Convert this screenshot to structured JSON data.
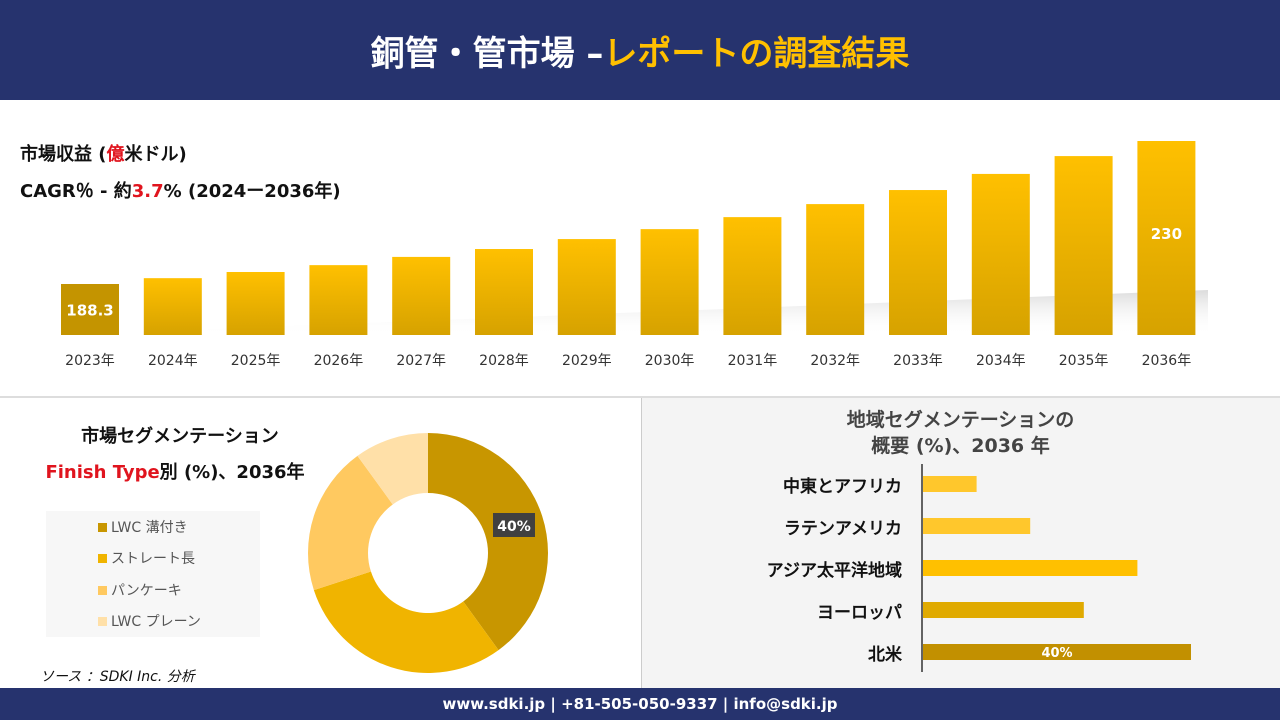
{
  "header": {
    "title_main": "銅管・管市場 –",
    "title_highlight": "レポートの調査結果"
  },
  "revenue": {
    "label_pre": "市場収益 (",
    "label_red": "億",
    "label_post": "米ドル)",
    "cagr_pre": "CAGR％ - 約",
    "cagr_red": "3.7",
    "cagr_post": "% (2024ー2036年)"
  },
  "chart_data": [
    {
      "type": "bar",
      "categories": [
        "2023年",
        "2024年",
        "2025年",
        "2026年",
        "2027年",
        "2028年",
        "2029年",
        "2030年",
        "2031年",
        "2032年",
        "2033年",
        "2034年",
        "2035年",
        "2036年"
      ],
      "values": [
        188.3,
        190.0,
        191.8,
        193.8,
        196.2,
        198.5,
        201.4,
        204.3,
        207.8,
        211.6,
        215.7,
        220.4,
        225.6,
        230
      ],
      "data_labels": {
        "0": "188.3",
        "13": "230"
      },
      "ylabel": "",
      "xlabel": ""
    },
    {
      "type": "pie",
      "title": "市場セグメンテーション",
      "subtitle_red": "Finish Type",
      "subtitle": "別 (%)、2036年",
      "labels": [
        "LWC 溝付き",
        "ストレート長",
        "パンケーキ",
        "LWC プレーン"
      ],
      "values": [
        40,
        30,
        20,
        10
      ],
      "colors": [
        "#c89600",
        "#f0b400",
        "#ffc960",
        "#ffe0a8"
      ],
      "data_labels": {
        "0": "40%"
      }
    },
    {
      "type": "bar",
      "orientation": "horizontal",
      "title": "地域セグメンテーションの",
      "title2": "概要 (%)、2036 年",
      "categories": [
        "中東とアフリカ",
        "ラテンアメリカ",
        "アジア太平洋地域",
        "ヨーロッパ",
        "北米"
      ],
      "values": [
        8,
        16,
        32,
        24,
        40
      ],
      "colors": [
        "#ffc72c",
        "#ffc72c",
        "#ffc000",
        "#e0aa00",
        "#c29000"
      ],
      "data_labels": {
        "4": "40%"
      }
    }
  ],
  "source": "ソース ：SDKI Inc. 分析",
  "footer": "www.sdki.jp | +81-505-050-9337 | info@sdki.jp"
}
